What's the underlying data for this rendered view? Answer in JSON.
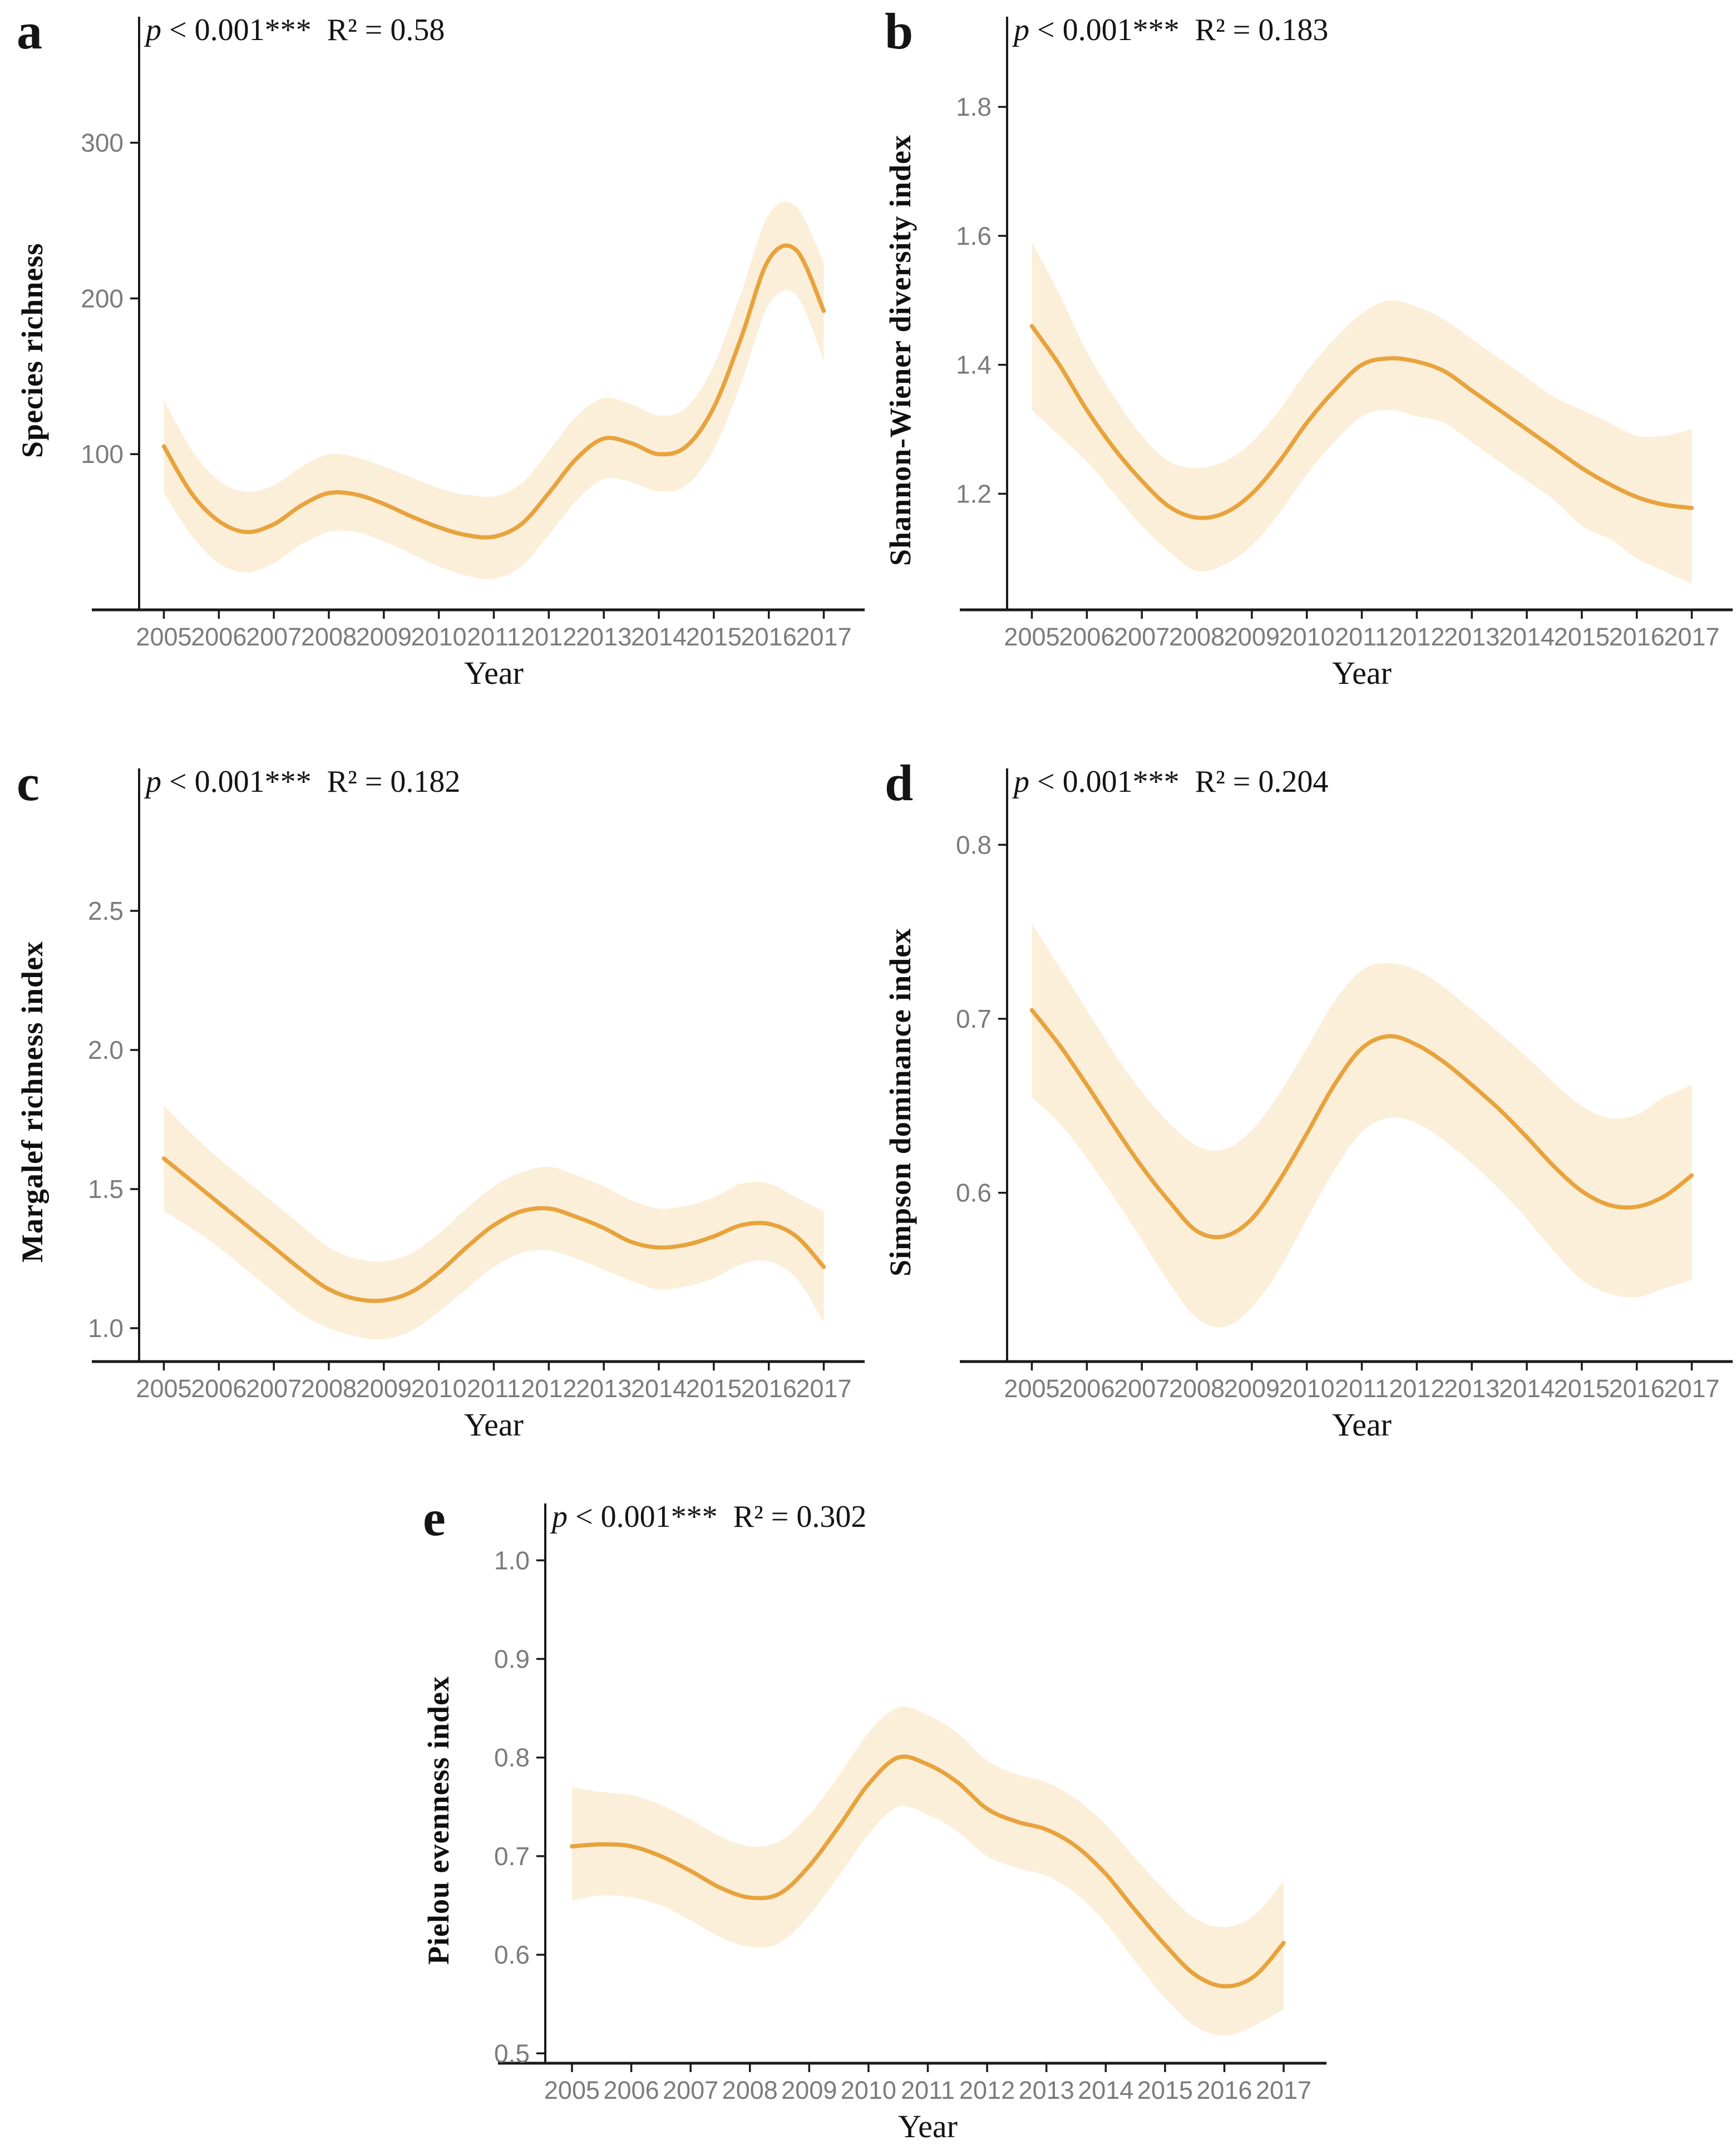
{
  "figure": {
    "background": "#ffffff",
    "x_axis_title": "Year",
    "line_color": "#E8A33C",
    "band_color": "#FBEFDA",
    "axis_color": "#1a1a1a",
    "tick_label_color": "#7b7b7b"
  },
  "chart_data": [
    {
      "type": "line",
      "panel_label": "a",
      "stats": {
        "p_var": "p",
        "p_rest": " < 0.001***",
        "r2": "R² = 0.58"
      },
      "xlabel": "Year",
      "ylabel": "Species richness",
      "xlim": [
        2004.55,
        2017.45
      ],
      "ylim": [
        0,
        352
      ],
      "x_ticks": [
        2005,
        2006,
        2007,
        2008,
        2009,
        2010,
        2011,
        2012,
        2013,
        2014,
        2015,
        2016,
        2017
      ],
      "y_ticks": [
        {
          "v": 100,
          "label": "100"
        },
        {
          "v": 200,
          "label": "200"
        },
        {
          "v": 300,
          "label": "300"
        }
      ],
      "grid": false,
      "legend": "none",
      "line_color": "#E8A33C",
      "band_color": "#FBEFDA",
      "x": [
        2005,
        2005.5,
        2006,
        2006.5,
        2007,
        2007.5,
        2008,
        2008.5,
        2009,
        2009.5,
        2010,
        2010.5,
        2011,
        2011.5,
        2012,
        2012.5,
        2013,
        2013.5,
        2014,
        2014.5,
        2015,
        2015.5,
        2016,
        2016.5,
        2017
      ],
      "y": [
        105,
        75,
        57,
        50,
        55,
        67,
        75,
        74,
        68,
        60,
        53,
        48,
        47,
        55,
        75,
        97,
        110,
        107,
        100,
        105,
        130,
        175,
        225,
        231,
        192
      ],
      "band": {
        "lower": [
          75,
          48,
          30,
          24,
          30,
          42,
          50,
          50,
          44,
          36,
          28,
          22,
          20,
          28,
          48,
          70,
          84,
          82,
          76,
          80,
          103,
          146,
          196,
          202,
          160
        ],
        "upper": [
          135,
          103,
          83,
          76,
          80,
          92,
          100,
          98,
          92,
          85,
          78,
          74,
          73,
          81,
          102,
          124,
          136,
          132,
          125,
          130,
          157,
          204,
          254,
          259,
          223
        ]
      }
    },
    {
      "type": "line",
      "panel_label": "b",
      "stats": {
        "p_var": "p",
        "p_rest": " < 0.001***",
        "r2": "R² = 0.183"
      },
      "xlabel": "Year",
      "ylabel": "Shannon-Wiener diversity index",
      "xlim": [
        2004.55,
        2017.45
      ],
      "ylim": [
        1.02,
        1.87
      ],
      "x_ticks": [
        2005,
        2006,
        2007,
        2008,
        2009,
        2010,
        2011,
        2012,
        2013,
        2014,
        2015,
        2016,
        2017
      ],
      "y_ticks": [
        {
          "v": 1.2,
          "label": "1.2"
        },
        {
          "v": 1.4,
          "label": "1.4"
        },
        {
          "v": 1.6,
          "label": "1.6"
        },
        {
          "v": 1.8,
          "label": "1.8"
        }
      ],
      "grid": false,
      "legend": "none",
      "line_color": "#E8A33C",
      "band_color": "#FBEFDA",
      "x": [
        2005,
        2005.5,
        2006,
        2006.5,
        2007,
        2007.5,
        2008,
        2008.5,
        2009,
        2009.5,
        2010,
        2010.5,
        2011,
        2011.5,
        2012,
        2012.5,
        2013,
        2013.5,
        2014,
        2014.5,
        2015,
        2015.5,
        2016,
        2016.5,
        2017
      ],
      "y": [
        1.46,
        1.4,
        1.33,
        1.27,
        1.22,
        1.18,
        1.163,
        1.17,
        1.2,
        1.25,
        1.31,
        1.36,
        1.4,
        1.41,
        1.405,
        1.39,
        1.36,
        1.33,
        1.3,
        1.27,
        1.24,
        1.215,
        1.195,
        1.183,
        1.178
      ],
      "band": {
        "lower": [
          1.33,
          1.29,
          1.25,
          1.2,
          1.15,
          1.11,
          1.08,
          1.09,
          1.12,
          1.17,
          1.23,
          1.28,
          1.32,
          1.33,
          1.32,
          1.31,
          1.28,
          1.25,
          1.22,
          1.19,
          1.15,
          1.13,
          1.1,
          1.08,
          1.06
        ],
        "upper": [
          1.59,
          1.51,
          1.42,
          1.35,
          1.29,
          1.25,
          1.24,
          1.25,
          1.28,
          1.33,
          1.39,
          1.44,
          1.48,
          1.5,
          1.49,
          1.47,
          1.44,
          1.41,
          1.38,
          1.35,
          1.33,
          1.31,
          1.29,
          1.29,
          1.3
        ]
      }
    },
    {
      "type": "line",
      "panel_label": "c",
      "stats": {
        "p_var": "p",
        "p_rest": " < 0.001***",
        "r2": "R² = 0.182"
      },
      "xlabel": "Year",
      "ylabel": "Margalef richness index",
      "xlim": [
        2004.55,
        2017.45
      ],
      "ylim": [
        0.88,
        2.85
      ],
      "x_ticks": [
        2005,
        2006,
        2007,
        2008,
        2009,
        2010,
        2011,
        2012,
        2013,
        2014,
        2015,
        2016,
        2017
      ],
      "y_ticks": [
        {
          "v": 1.0,
          "label": "1.0"
        },
        {
          "v": 1.5,
          "label": "1.5"
        },
        {
          "v": 2.0,
          "label": "2.0"
        },
        {
          "v": 2.5,
          "label": "2.5"
        }
      ],
      "grid": false,
      "legend": "none",
      "line_color": "#E8A33C",
      "band_color": "#FBEFDA",
      "x": [
        2005,
        2005.5,
        2006,
        2006.5,
        2007,
        2007.5,
        2008,
        2008.5,
        2009,
        2009.5,
        2010,
        2010.5,
        2011,
        2011.5,
        2012,
        2012.5,
        2013,
        2013.5,
        2014,
        2014.5,
        2015,
        2015.5,
        2016,
        2016.5,
        2017
      ],
      "y": [
        1.61,
        1.53,
        1.45,
        1.37,
        1.29,
        1.21,
        1.14,
        1.105,
        1.1,
        1.13,
        1.2,
        1.29,
        1.37,
        1.42,
        1.43,
        1.4,
        1.36,
        1.31,
        1.29,
        1.3,
        1.33,
        1.37,
        1.375,
        1.33,
        1.22
      ],
      "band": {
        "lower": [
          1.42,
          1.36,
          1.29,
          1.21,
          1.13,
          1.05,
          1.0,
          0.97,
          0.96,
          0.99,
          1.06,
          1.14,
          1.22,
          1.27,
          1.28,
          1.25,
          1.21,
          1.17,
          1.14,
          1.15,
          1.18,
          1.23,
          1.24,
          1.18,
          1.02
        ],
        "upper": [
          1.8,
          1.7,
          1.61,
          1.53,
          1.45,
          1.37,
          1.29,
          1.25,
          1.24,
          1.27,
          1.34,
          1.43,
          1.51,
          1.56,
          1.58,
          1.55,
          1.51,
          1.46,
          1.43,
          1.44,
          1.47,
          1.52,
          1.52,
          1.47,
          1.42
        ]
      }
    },
    {
      "type": "line",
      "panel_label": "d",
      "stats": {
        "p_var": "p",
        "p_rest": " < 0.001***",
        "r2": "R² = 0.204"
      },
      "xlabel": "Year",
      "ylabel": "Simpson dominance index",
      "xlim": [
        2004.55,
        2017.45
      ],
      "ylim": [
        0.503,
        0.818
      ],
      "x_ticks": [
        2005,
        2006,
        2007,
        2008,
        2009,
        2010,
        2011,
        2012,
        2013,
        2014,
        2015,
        2016,
        2017
      ],
      "y_ticks": [
        {
          "v": 0.6,
          "label": "0.6"
        },
        {
          "v": 0.7,
          "label": "0.7"
        },
        {
          "v": 0.8,
          "label": "0.8"
        }
      ],
      "grid": false,
      "legend": "none",
      "line_color": "#E8A33C",
      "band_color": "#FBEFDA",
      "x": [
        2005,
        2005.5,
        2006,
        2006.5,
        2007,
        2007.5,
        2008,
        2008.5,
        2009,
        2009.5,
        2010,
        2010.5,
        2011,
        2011.5,
        2012,
        2012.5,
        2013,
        2013.5,
        2014,
        2014.5,
        2015,
        2015.5,
        2016,
        2016.5,
        2017
      ],
      "y": [
        0.705,
        0.685,
        0.662,
        0.638,
        0.615,
        0.595,
        0.578,
        0.575,
        0.585,
        0.607,
        0.634,
        0.662,
        0.683,
        0.69,
        0.685,
        0.675,
        0.662,
        0.648,
        0.632,
        0.615,
        0.601,
        0.593,
        0.592,
        0.598,
        0.61
      ],
      "band": {
        "lower": [
          0.655,
          0.64,
          0.62,
          0.597,
          0.573,
          0.548,
          0.528,
          0.523,
          0.534,
          0.556,
          0.585,
          0.613,
          0.635,
          0.643,
          0.64,
          0.63,
          0.617,
          0.602,
          0.585,
          0.566,
          0.55,
          0.542,
          0.54,
          0.545,
          0.55
        ],
        "upper": [
          0.755,
          0.73,
          0.705,
          0.68,
          0.658,
          0.64,
          0.627,
          0.625,
          0.636,
          0.657,
          0.683,
          0.71,
          0.728,
          0.732,
          0.728,
          0.718,
          0.705,
          0.692,
          0.678,
          0.663,
          0.65,
          0.643,
          0.645,
          0.655,
          0.662
        ]
      }
    },
    {
      "type": "line",
      "panel_label": "e",
      "stats": {
        "p_var": "p",
        "p_rest": " < 0.001***",
        "r2": "R² = 0.302"
      },
      "xlabel": "Year",
      "ylabel": "Pielou evenness index",
      "xlim": [
        2004.55,
        2017.45
      ],
      "ylim": [
        0.49,
        1.012
      ],
      "x_ticks": [
        2005,
        2006,
        2007,
        2008,
        2009,
        2010,
        2011,
        2012,
        2013,
        2014,
        2015,
        2016,
        2017
      ],
      "y_ticks": [
        {
          "v": 0.5,
          "label": "0.5"
        },
        {
          "v": 0.6,
          "label": "0.6"
        },
        {
          "v": 0.7,
          "label": "0.7"
        },
        {
          "v": 0.8,
          "label": "0.8"
        },
        {
          "v": 0.9,
          "label": "0.9"
        },
        {
          "v": 1.0,
          "label": "1.0"
        }
      ],
      "grid": false,
      "legend": "none",
      "line_color": "#E8A33C",
      "band_color": "#FBEFDA",
      "x": [
        2005,
        2005.5,
        2006,
        2006.5,
        2007,
        2007.5,
        2008,
        2008.5,
        2009,
        2009.5,
        2010,
        2010.5,
        2011,
        2011.5,
        2012,
        2012.5,
        2013,
        2013.5,
        2014,
        2014.5,
        2015,
        2015.5,
        2016,
        2016.5,
        2017
      ],
      "y": [
        0.71,
        0.712,
        0.71,
        0.7,
        0.685,
        0.668,
        0.658,
        0.662,
        0.69,
        0.73,
        0.773,
        0.8,
        0.793,
        0.775,
        0.748,
        0.735,
        0.727,
        0.71,
        0.682,
        0.645,
        0.61,
        0.58,
        0.568,
        0.578,
        0.612
      ],
      "band": {
        "lower": [
          0.655,
          0.66,
          0.658,
          0.65,
          0.635,
          0.618,
          0.608,
          0.612,
          0.64,
          0.68,
          0.722,
          0.75,
          0.742,
          0.725,
          0.7,
          0.688,
          0.68,
          0.662,
          0.632,
          0.593,
          0.556,
          0.528,
          0.518,
          0.528,
          0.545
        ],
        "upper": [
          0.77,
          0.765,
          0.762,
          0.752,
          0.737,
          0.72,
          0.71,
          0.715,
          0.742,
          0.782,
          0.825,
          0.851,
          0.843,
          0.825,
          0.797,
          0.783,
          0.775,
          0.758,
          0.732,
          0.698,
          0.665,
          0.637,
          0.628,
          0.64,
          0.675
        ]
      }
    }
  ]
}
